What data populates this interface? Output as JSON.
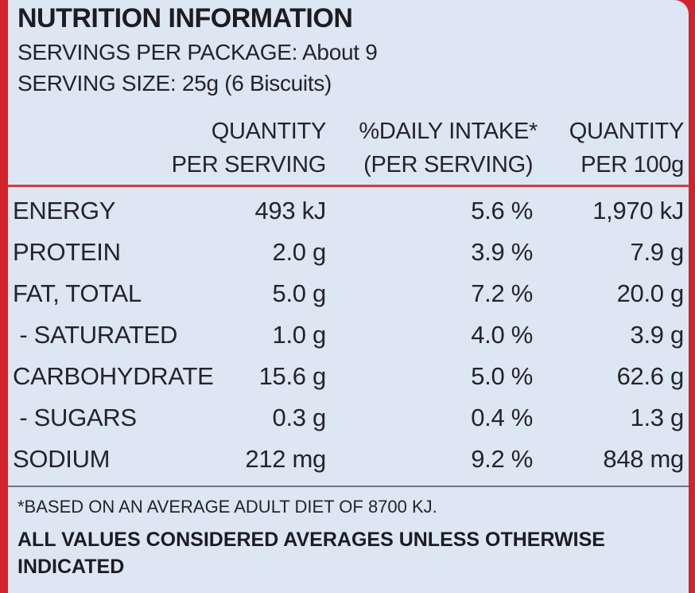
{
  "panel": {
    "title": "NUTRITION INFORMATION",
    "servings_per_package": "SERVINGS PER PACKAGE: About 9",
    "serving_size": "SERVING SIZE: 25g (6 Biscuits)"
  },
  "columns": [
    {
      "line1": "QUANTITY",
      "line2": "PER SERVING"
    },
    {
      "line1": "%DAILY INTAKE*",
      "line2": "(PER SERVING)"
    },
    {
      "line1": "QUANTITY",
      "line2": "PER 100g"
    }
  ],
  "rows": [
    {
      "label": "ENERGY",
      "per_serving": "493 kJ",
      "daily_intake": "5.6 %",
      "per_100g": "1,970 kJ"
    },
    {
      "label": "PROTEIN",
      "per_serving": "2.0 g",
      "daily_intake": "3.9 %",
      "per_100g": "7.9 g"
    },
    {
      "label": "FAT, TOTAL",
      "per_serving": "5.0 g",
      "daily_intake": "7.2 %",
      "per_100g": "20.0 g"
    },
    {
      "label": " - SATURATED",
      "per_serving": "1.0 g",
      "daily_intake": "4.0 %",
      "per_100g": "3.9 g"
    },
    {
      "label": "CARBOHYDRATE",
      "per_serving": "15.6 g",
      "daily_intake": "5.0 %",
      "per_100g": "62.6 g"
    },
    {
      "label": " - SUGARS",
      "per_serving": "0.3 g",
      "daily_intake": "0.4 %",
      "per_100g": "1.3 g"
    },
    {
      "label": "SODIUM",
      "per_serving": "212 mg",
      "daily_intake": "9.2 %",
      "per_100g": "848 mg"
    }
  ],
  "footnotes": {
    "diet_note": "*BASED ON AN AVERAGE ADULT DIET OF 8700 KJ.",
    "averages_note": "ALL VALUES CONSIDERED AVERAGES UNLESS OTHERWISE INDICATED"
  },
  "colors": {
    "package_red": "#d3232a",
    "panel_background": "#dde6f3",
    "divider_red": "#d23a3f"
  }
}
